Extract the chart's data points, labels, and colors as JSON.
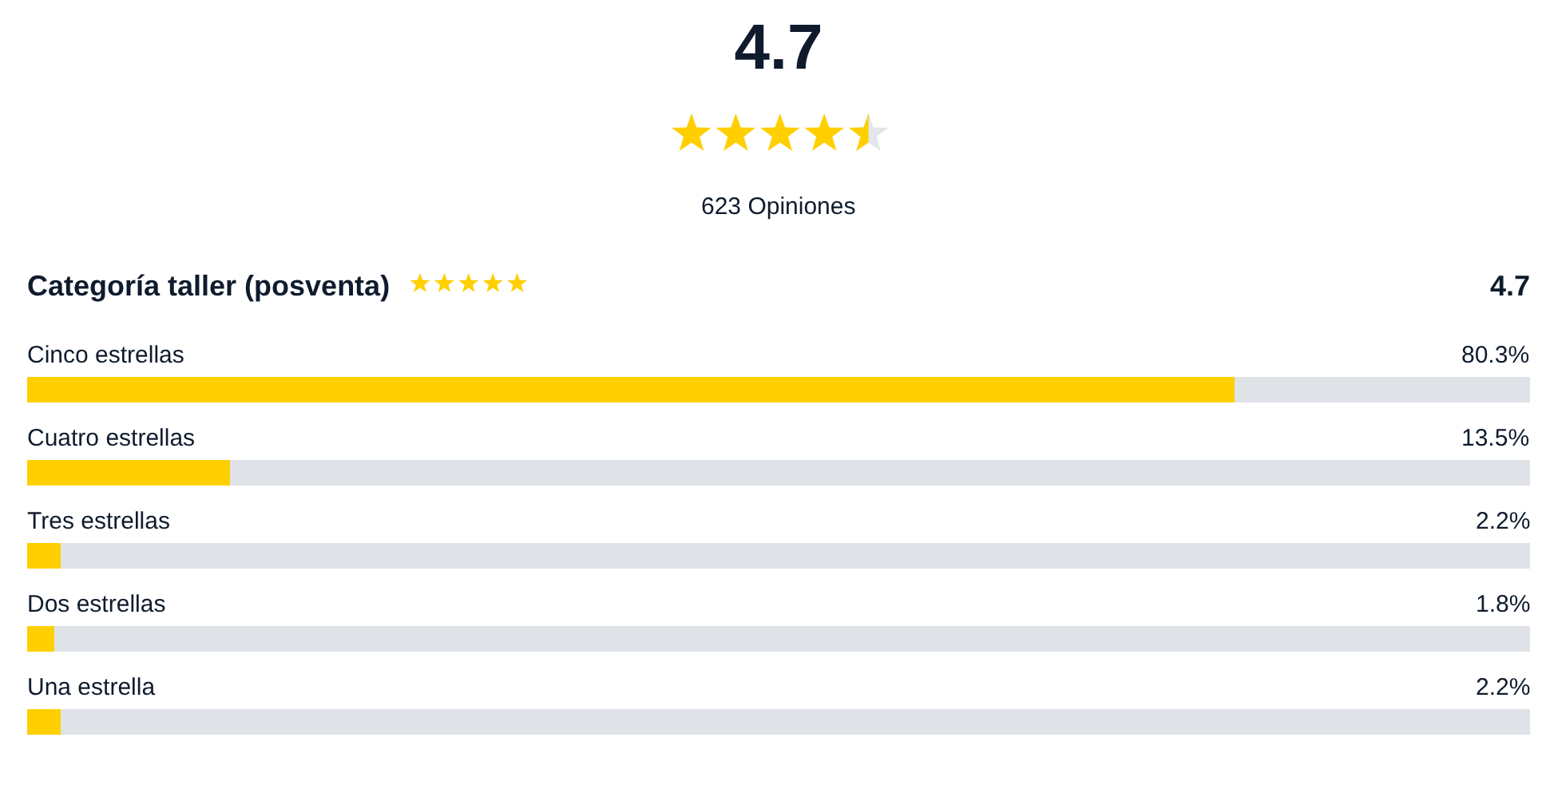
{
  "chart_data": {
    "type": "bar",
    "orientation": "horizontal",
    "title": "4.7",
    "subtitle": "623 Opiniones",
    "annotations": [
      "Categoría taller (posventa)",
      "4.7"
    ],
    "categories": [
      "Cinco estrellas",
      "Cuatro estrellas",
      "Tres estrellas",
      "Dos estrellas",
      "Una estrella"
    ],
    "values": [
      80.3,
      13.5,
      2.2,
      1.8,
      2.2
    ],
    "value_labels": [
      "80.3%",
      "13.5%",
      "2.2%",
      "1.8%",
      "2.2%"
    ],
    "color": "#ffcf00",
    "tick_labels": "y"
  }
}
